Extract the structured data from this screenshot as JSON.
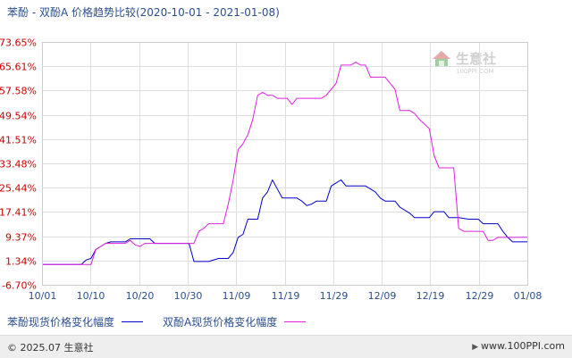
{
  "title": "苯酚 - 双酚A 价格趋势比较(2020-10-01 - 2021-01-08)",
  "watermark": {
    "cn": "生意社",
    "en": "100PPI.COM"
  },
  "legend": [
    {
      "label": "苯酚现货价格变化幅度",
      "color": "#0000cc"
    },
    {
      "label": "双酚A现货价格变化幅度",
      "color": "#e020e0"
    }
  ],
  "footer": {
    "copyright": "© 2025.07 生意社",
    "site": "www.100PPI.com"
  },
  "chart_data": {
    "type": "line",
    "ylim": [
      -6.7,
      73.65
    ],
    "yticks": [
      "73.65%",
      "65.61%",
      "57.58%",
      "49.54%",
      "41.51%",
      "33.48%",
      "25.44%",
      "17.41%",
      "9.37%",
      "1.34%",
      "-6.70%"
    ],
    "ytick_values": [
      73.65,
      65.61,
      57.58,
      49.54,
      41.51,
      33.48,
      25.44,
      17.41,
      9.37,
      1.34,
      -6.7
    ],
    "xlim": [
      0,
      99
    ],
    "xticks": [
      "10/01",
      "10/10",
      "10/20",
      "10/30",
      "11/09",
      "11/19",
      "11/29",
      "12/09",
      "12/19",
      "12/29",
      "01/08"
    ],
    "xtick_positions": [
      0,
      9.9,
      19.8,
      29.7,
      39.6,
      49.5,
      59.4,
      69.3,
      79.2,
      89.1,
      99
    ],
    "grid": true,
    "series": [
      {
        "name": "苯酚现货价格变化幅度",
        "color": "#0000cc",
        "points": [
          [
            0,
            0
          ],
          [
            8,
            0
          ],
          [
            9,
            1.5
          ],
          [
            10,
            2
          ],
          [
            11,
            5
          ],
          [
            12,
            6
          ],
          [
            13,
            7
          ],
          [
            14,
            7.5
          ],
          [
            17,
            7.5
          ],
          [
            18,
            8.5
          ],
          [
            22,
            8.5
          ],
          [
            23,
            7
          ],
          [
            30,
            7
          ],
          [
            31,
            1
          ],
          [
            34,
            1
          ],
          [
            36,
            2
          ],
          [
            38,
            2
          ],
          [
            39,
            4
          ],
          [
            40,
            9
          ],
          [
            41,
            10
          ],
          [
            42,
            15
          ],
          [
            43,
            15
          ],
          [
            44,
            15
          ],
          [
            45,
            22
          ],
          [
            46,
            24
          ],
          [
            47,
            28
          ],
          [
            48,
            25
          ],
          [
            49,
            22
          ],
          [
            52,
            22
          ],
          [
            53,
            21
          ],
          [
            54,
            19.5
          ],
          [
            55,
            20
          ],
          [
            56,
            21
          ],
          [
            58,
            21
          ],
          [
            59,
            26
          ],
          [
            60,
            27
          ],
          [
            61,
            28
          ],
          [
            62,
            26
          ],
          [
            66,
            26
          ],
          [
            67,
            25
          ],
          [
            68,
            24
          ],
          [
            69,
            22
          ],
          [
            70,
            21
          ],
          [
            72,
            21
          ],
          [
            73,
            19
          ],
          [
            74,
            18
          ],
          [
            75,
            17
          ],
          [
            76,
            15.5
          ],
          [
            77,
            15.5
          ],
          [
            79,
            15.5
          ],
          [
            80,
            17.5
          ],
          [
            82,
            17.5
          ],
          [
            83,
            15.5
          ],
          [
            85,
            15.5
          ],
          [
            87,
            15
          ],
          [
            89,
            15
          ],
          [
            90,
            13.5
          ],
          [
            93,
            13.5
          ],
          [
            94,
            11
          ],
          [
            95,
            9
          ],
          [
            96,
            7.5
          ],
          [
            99,
            7.5
          ]
        ]
      },
      {
        "name": "双酚A现货价格变化幅度",
        "color": "#e020e0",
        "points": [
          [
            0,
            0
          ],
          [
            10,
            0
          ],
          [
            11,
            5
          ],
          [
            12,
            6
          ],
          [
            13,
            7
          ],
          [
            17,
            7
          ],
          [
            18,
            8
          ],
          [
            19,
            6.5
          ],
          [
            20,
            6
          ],
          [
            21,
            7
          ],
          [
            22,
            7
          ],
          [
            25,
            7
          ],
          [
            30,
            7
          ],
          [
            31,
            7
          ],
          [
            32,
            11
          ],
          [
            33,
            12
          ],
          [
            34,
            13.5
          ],
          [
            37,
            13.5
          ],
          [
            38,
            20
          ],
          [
            39,
            28
          ],
          [
            40,
            38
          ],
          [
            41,
            40
          ],
          [
            42,
            43
          ],
          [
            43,
            48
          ],
          [
            44,
            56
          ],
          [
            45,
            57
          ],
          [
            46,
            56
          ],
          [
            47,
            56
          ],
          [
            48,
            55
          ],
          [
            49,
            55
          ],
          [
            50,
            55
          ],
          [
            51,
            53
          ],
          [
            52,
            55
          ],
          [
            56,
            55
          ],
          [
            57,
            55
          ],
          [
            58,
            56
          ],
          [
            59,
            58
          ],
          [
            60,
            60
          ],
          [
            61,
            66
          ],
          [
            62,
            66
          ],
          [
            63,
            66
          ],
          [
            64,
            67
          ],
          [
            65,
            66
          ],
          [
            66,
            66
          ],
          [
            67,
            62
          ],
          [
            69,
            62
          ],
          [
            70,
            62
          ],
          [
            71,
            60
          ],
          [
            72,
            58
          ],
          [
            73,
            51
          ],
          [
            74,
            51
          ],
          [
            75,
            51
          ],
          [
            76,
            50
          ],
          [
            77,
            48
          ],
          [
            79,
            45
          ],
          [
            80,
            36
          ],
          [
            81,
            32
          ],
          [
            82,
            32
          ],
          [
            84,
            32
          ],
          [
            85,
            12
          ],
          [
            86,
            11
          ],
          [
            87,
            11
          ],
          [
            88,
            11
          ],
          [
            89,
            11
          ],
          [
            90,
            11
          ],
          [
            91,
            8
          ],
          [
            92,
            8
          ],
          [
            93,
            9
          ],
          [
            94,
            9
          ],
          [
            99,
            9
          ]
        ]
      }
    ]
  }
}
